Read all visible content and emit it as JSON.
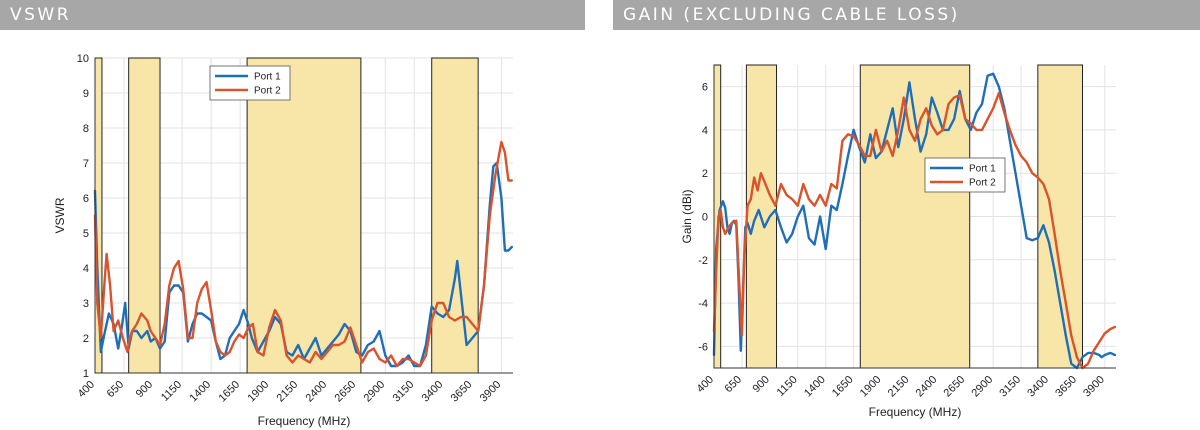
{
  "charts": {
    "vswr": {
      "header": "VSWR"
    },
    "gain": {
      "header": "GAIN (EXCLUDING CABLE LOSS)"
    }
  },
  "colors": {
    "port1": "#1f6fb8",
    "port2": "#d9532c",
    "band_fill": "#f8e6a8",
    "header_bg": "#a7a7a7"
  },
  "chart_data": [
    {
      "id": "vswr",
      "type": "line",
      "title": "VSWR",
      "xlabel": "Frequency (MHz)",
      "ylabel": "VSWR",
      "xlim": [
        400,
        4000
      ],
      "ylim": [
        1,
        10
      ],
      "xticks": [
        400,
        650,
        900,
        1150,
        1400,
        1650,
        1900,
        2150,
        2400,
        2650,
        2900,
        3150,
        3400,
        3650,
        3900
      ],
      "yticks": [
        1,
        2,
        3,
        4,
        5,
        6,
        7,
        8,
        9,
        10
      ],
      "grid": true,
      "legend": "top-center",
      "bands": [
        [
          400,
          460
        ],
        [
          690,
          960
        ],
        [
          1710,
          2690
        ],
        [
          3300,
          3700
        ]
      ],
      "series": [
        {
          "name": "Port 1",
          "color": "#1f6fb8",
          "x": [
            400,
            420,
            450,
            480,
            520,
            560,
            600,
            630,
            660,
            690,
            720,
            760,
            800,
            850,
            880,
            920,
            960,
            1000,
            1040,
            1080,
            1120,
            1160,
            1200,
            1240,
            1280,
            1320,
            1360,
            1400,
            1440,
            1480,
            1520,
            1560,
            1600,
            1640,
            1680,
            1720,
            1750,
            1800,
            1850,
            1900,
            1950,
            2000,
            2050,
            2100,
            2150,
            2200,
            2250,
            2300,
            2350,
            2400,
            2450,
            2500,
            2550,
            2600,
            2650,
            2700,
            2750,
            2800,
            2850,
            2900,
            2950,
            3000,
            3050,
            3100,
            3150,
            3200,
            3250,
            3300,
            3350,
            3400,
            3450,
            3500,
            3520,
            3560,
            3600,
            3650,
            3700,
            3750,
            3800,
            3830,
            3860,
            3900,
            3930,
            3960,
            3990
          ],
          "y": [
            6.2,
            4.0,
            1.6,
            2.1,
            2.7,
            2.4,
            1.7,
            2.3,
            3.0,
            1.7,
            2.2,
            2.2,
            2.0,
            2.2,
            1.9,
            2.0,
            1.7,
            1.9,
            3.3,
            3.5,
            3.5,
            3.3,
            1.9,
            2.4,
            2.7,
            2.7,
            2.6,
            2.5,
            1.9,
            1.4,
            1.5,
            2.0,
            2.2,
            2.4,
            2.8,
            2.4,
            2.0,
            1.6,
            1.9,
            2.2,
            2.6,
            2.4,
            1.6,
            1.5,
            1.8,
            1.4,
            1.7,
            2.0,
            1.5,
            1.7,
            1.9,
            2.1,
            2.4,
            2.2,
            1.6,
            1.5,
            1.8,
            1.9,
            2.2,
            1.5,
            1.2,
            1.2,
            1.3,
            1.5,
            1.2,
            1.2,
            1.8,
            2.9,
            2.7,
            2.6,
            2.8,
            3.7,
            4.2,
            3.0,
            1.8,
            2.0,
            2.2,
            3.5,
            5.8,
            6.9,
            7.0,
            6.0,
            4.5,
            4.5,
            4.6
          ]
        },
        {
          "name": "Port 2",
          "color": "#d9532c",
          "x": [
            400,
            420,
            450,
            480,
            500,
            530,
            560,
            600,
            640,
            680,
            700,
            720,
            760,
            800,
            850,
            880,
            920,
            960,
            1000,
            1040,
            1080,
            1120,
            1160,
            1200,
            1240,
            1280,
            1320,
            1360,
            1400,
            1440,
            1480,
            1520,
            1560,
            1600,
            1640,
            1680,
            1720,
            1760,
            1800,
            1850,
            1900,
            1950,
            2000,
            2050,
            2100,
            2150,
            2200,
            2250,
            2300,
            2350,
            2400,
            2450,
            2500,
            2550,
            2600,
            2650,
            2700,
            2750,
            2800,
            2850,
            2900,
            2950,
            3000,
            3050,
            3100,
            3150,
            3200,
            3250,
            3300,
            3350,
            3400,
            3450,
            3500,
            3550,
            3600,
            3650,
            3700,
            3750,
            3800,
            3850,
            3900,
            3930,
            3960,
            3990
          ],
          "y": [
            5.5,
            3.0,
            2.0,
            3.5,
            4.4,
            3.5,
            2.2,
            2.5,
            2.0,
            1.6,
            2.0,
            2.2,
            2.4,
            2.7,
            2.5,
            2.2,
            2.0,
            1.8,
            2.4,
            3.5,
            4.0,
            4.2,
            3.4,
            2.0,
            2.0,
            3.0,
            3.4,
            3.6,
            2.8,
            1.9,
            1.6,
            1.5,
            1.6,
            1.9,
            2.1,
            2.0,
            2.3,
            2.4,
            1.6,
            1.5,
            2.3,
            2.8,
            2.5,
            1.5,
            1.3,
            1.5,
            1.4,
            1.3,
            1.6,
            1.4,
            1.6,
            1.8,
            1.8,
            1.9,
            2.3,
            1.8,
            1.3,
            1.6,
            1.7,
            1.4,
            1.3,
            1.5,
            1.2,
            1.4,
            1.4,
            1.3,
            1.2,
            1.5,
            2.5,
            3.0,
            3.0,
            2.6,
            2.5,
            2.6,
            2.6,
            2.4,
            2.2,
            3.5,
            5.5,
            6.7,
            7.6,
            7.3,
            6.5,
            6.5
          ]
        }
      ]
    },
    {
      "id": "gain",
      "type": "line",
      "title": "GAIN (EXCLUDING CABLE LOSS)",
      "xlabel": "Frequency (MHz)",
      "ylabel": "Gain (dBi)",
      "xlim": [
        400,
        4000
      ],
      "ylim": [
        -7,
        7
      ],
      "xticks": [
        400,
        650,
        900,
        1150,
        1400,
        1650,
        1900,
        2150,
        2400,
        2650,
        2900,
        3150,
        3400,
        3650,
        3900
      ],
      "yticks": [
        -6,
        -4,
        -2,
        0,
        2,
        4,
        6
      ],
      "grid": true,
      "legend": "center-right",
      "bands": [
        [
          400,
          460
        ],
        [
          690,
          960
        ],
        [
          1710,
          2690
        ],
        [
          3300,
          3700
        ]
      ],
      "series": [
        {
          "name": "Port 1",
          "color": "#1f6fb8",
          "x": [
            400,
            420,
            450,
            480,
            500,
            520,
            540,
            560,
            580,
            600,
            620,
            640,
            660,
            680,
            700,
            730,
            760,
            800,
            850,
            900,
            950,
            1000,
            1050,
            1100,
            1150,
            1200,
            1250,
            1300,
            1350,
            1400,
            1450,
            1500,
            1550,
            1600,
            1650,
            1700,
            1750,
            1800,
            1850,
            1900,
            1950,
            2000,
            2050,
            2100,
            2150,
            2200,
            2250,
            2300,
            2350,
            2400,
            2450,
            2500,
            2550,
            2600,
            2650,
            2700,
            2750,
            2800,
            2850,
            2900,
            2950,
            3000,
            3050,
            3100,
            3150,
            3200,
            3250,
            3300,
            3350,
            3400,
            3450,
            3500,
            3550,
            3600,
            3650,
            3700,
            3750,
            3800,
            3850,
            3870,
            3900,
            3950,
            3990
          ],
          "y": [
            -6.4,
            -1.5,
            0.3,
            0.7,
            0.4,
            -0.5,
            -0.8,
            -0.3,
            -0.2,
            -0.4,
            -3.0,
            -6.2,
            -3.5,
            -0.5,
            -0.3,
            -0.8,
            -0.2,
            0.3,
            -0.5,
            0.0,
            0.3,
            -0.5,
            -1.2,
            -0.8,
            0.0,
            0.5,
            -1.0,
            -1.3,
            0.0,
            -1.5,
            0.5,
            0.3,
            1.5,
            2.8,
            4.0,
            3.2,
            2.5,
            3.8,
            2.7,
            3.0,
            4.0,
            5.0,
            3.2,
            4.5,
            6.2,
            4.5,
            3.0,
            3.8,
            5.5,
            4.8,
            4.0,
            4.0,
            4.5,
            5.8,
            4.5,
            4.0,
            4.8,
            5.2,
            6.5,
            6.6,
            6.0,
            5.0,
            3.5,
            2.0,
            0.5,
            -1.0,
            -1.1,
            -1.0,
            -0.4,
            -1.2,
            -2.5,
            -4.0,
            -5.5,
            -6.8,
            -7.0,
            -6.5,
            -6.3,
            -6.3,
            -6.4,
            -6.5,
            -6.4,
            -6.3,
            -6.4
          ]
        },
        {
          "name": "Port 2",
          "color": "#d9532c",
          "x": [
            400,
            420,
            440,
            460,
            480,
            500,
            530,
            560,
            600,
            630,
            650,
            670,
            700,
            730,
            760,
            790,
            820,
            860,
            900,
            950,
            1000,
            1050,
            1100,
            1150,
            1200,
            1250,
            1300,
            1350,
            1400,
            1450,
            1500,
            1550,
            1600,
            1650,
            1700,
            1750,
            1800,
            1850,
            1900,
            1950,
            2000,
            2050,
            2100,
            2150,
            2200,
            2250,
            2300,
            2350,
            2400,
            2450,
            2500,
            2550,
            2600,
            2650,
            2700,
            2750,
            2800,
            2850,
            2900,
            2950,
            3000,
            3050,
            3100,
            3150,
            3200,
            3250,
            3300,
            3350,
            3400,
            3450,
            3500,
            3550,
            3600,
            3650,
            3700,
            3750,
            3800,
            3850,
            3900,
            3950,
            3990
          ],
          "y": [
            -5.3,
            -2.5,
            0.0,
            0.3,
            -0.5,
            -0.8,
            -0.5,
            -0.3,
            -0.2,
            -3.5,
            -5.5,
            -2.0,
            0.5,
            0.8,
            1.8,
            1.2,
            2.0,
            1.5,
            1.0,
            0.5,
            1.5,
            1.0,
            0.8,
            0.5,
            1.5,
            0.8,
            0.5,
            1.0,
            0.5,
            1.5,
            1.3,
            3.5,
            3.8,
            3.7,
            3.3,
            2.8,
            2.8,
            4.0,
            3.0,
            3.5,
            2.8,
            4.0,
            5.5,
            4.0,
            3.5,
            4.5,
            5.0,
            4.2,
            3.8,
            4.0,
            5.2,
            5.5,
            5.6,
            4.5,
            4.3,
            4.0,
            4.0,
            4.5,
            5.0,
            5.7,
            4.8,
            4.0,
            3.3,
            2.8,
            2.5,
            2.0,
            1.8,
            1.5,
            0.8,
            -0.8,
            -2.5,
            -4.0,
            -5.5,
            -6.5,
            -7.0,
            -6.8,
            -6.2,
            -5.8,
            -5.4,
            -5.2,
            -5.1
          ]
        }
      ]
    }
  ]
}
